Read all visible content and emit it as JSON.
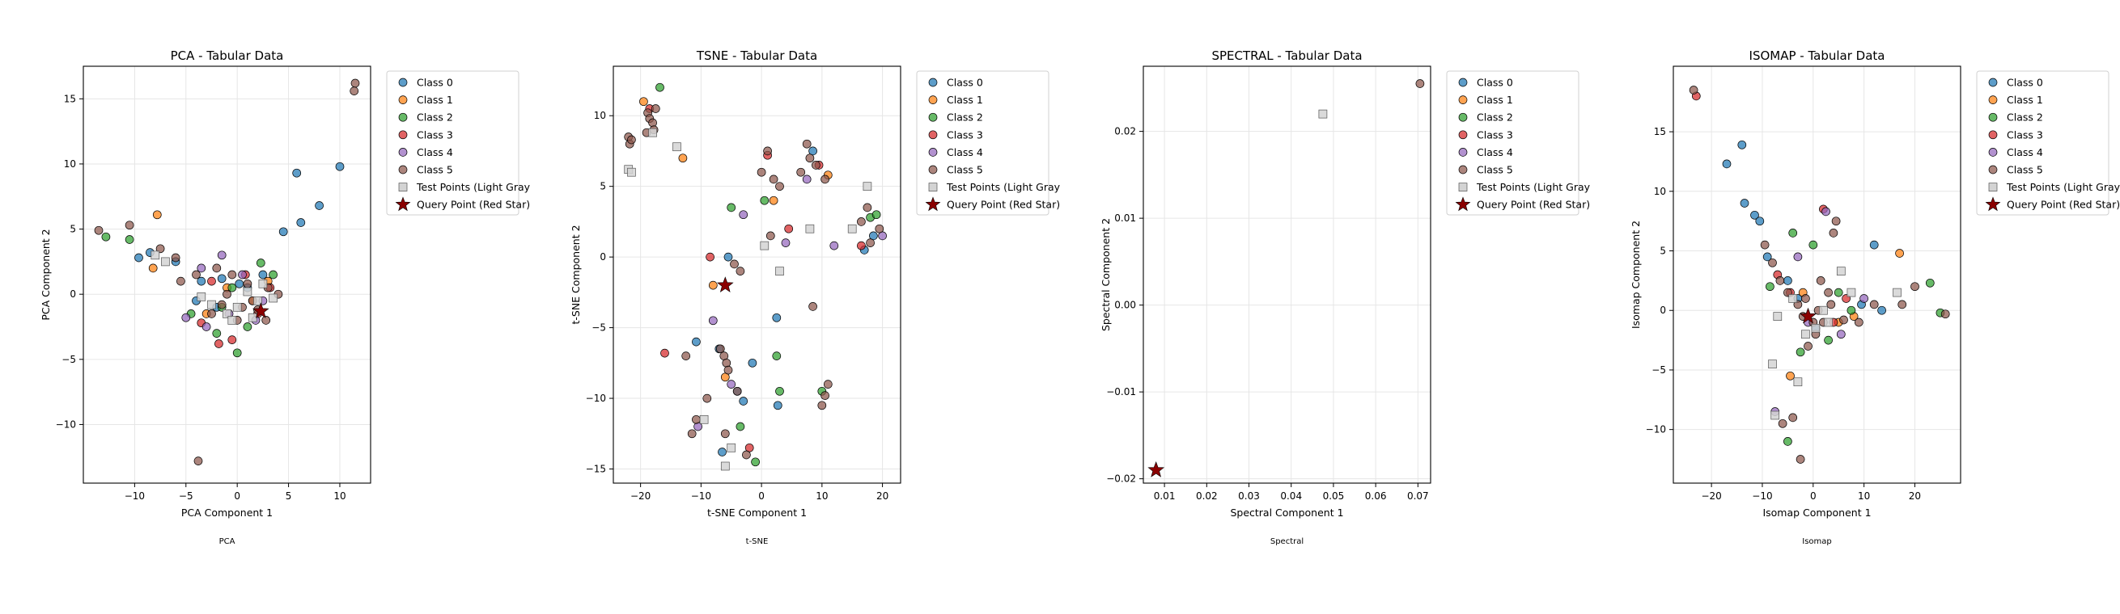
{
  "legend_labels": [
    "Class 0",
    "Class 1",
    "Class 2",
    "Class 3",
    "Class 4",
    "Class 5",
    "Test Points (Light Gray)",
    "Query Point (Red Star)"
  ],
  "class_colors": [
    "#1f77b4",
    "#ff7f0e",
    "#2ca02c",
    "#d62728",
    "#9467bd",
    "#8c564b"
  ],
  "test_color": "#d3d3d3",
  "query_color": "#8b0000",
  "chart_data": [
    {
      "type": "scatter",
      "title": "PCA - Tabular Data",
      "xlabel": "PCA Component 1",
      "ylabel": "PCA Component 2",
      "caption": "PCA",
      "xlim": [
        -15,
        13
      ],
      "ylim": [
        -14.5,
        17.5
      ],
      "xticks": [
        -10,
        -5,
        0,
        5,
        10
      ],
      "yticks": [
        -10,
        -5,
        0,
        5,
        10,
        15
      ],
      "xtick_labels": [
        "−10",
        "−5",
        "0",
        "5",
        "10"
      ],
      "ytick_labels": [
        "−10",
        "−5",
        "0",
        "5",
        "10",
        "15"
      ],
      "grid": true,
      "legend": "outside-upper-right",
      "series": [
        {
          "class": 0,
          "x": [
            -9.6,
            -8.5,
            -6.0,
            -3.5,
            -1.5,
            0.2,
            1.0,
            2.5,
            4.5,
            5.8,
            6.2,
            8.0,
            10.0,
            -4.0,
            -2.0
          ],
          "y": [
            2.8,
            3.2,
            2.5,
            1.0,
            1.2,
            0.8,
            0.5,
            1.5,
            4.8,
            9.3,
            5.5,
            6.8,
            9.8,
            -0.5,
            -1.0
          ]
        },
        {
          "class": 1,
          "x": [
            -7.8,
            -8.2,
            -3.0,
            -1.0,
            1.5,
            3.0
          ],
          "y": [
            6.1,
            2.0,
            -1.5,
            0.5,
            -0.5,
            1.0
          ]
        },
        {
          "class": 2,
          "x": [
            -12.8,
            -10.5,
            -4.5,
            -2.0,
            0.0,
            2.3,
            3.5,
            -0.5,
            1.0,
            -1.5
          ],
          "y": [
            4.4,
            4.2,
            -1.5,
            -3.0,
            -4.5,
            2.4,
            1.5,
            0.5,
            -2.5,
            -1.0
          ]
        },
        {
          "class": 3,
          "x": [
            -1.8,
            -3.5,
            -0.5,
            2.0,
            3.2,
            0.8,
            -2.5
          ],
          "y": [
            -3.8,
            -2.2,
            -3.5,
            -1.5,
            0.5,
            1.5,
            1.0
          ]
        },
        {
          "class": 4,
          "x": [
            -5.0,
            -3.0,
            -1.5,
            0.5,
            2.5,
            1.8,
            -0.8,
            -3.5
          ],
          "y": [
            -1.8,
            -2.5,
            3.0,
            1.5,
            -0.5,
            -2.0,
            -1.5,
            2.0
          ]
        },
        {
          "class": 5,
          "x": [
            -13.5,
            -10.5,
            -7.5,
            -6.0,
            -4.0,
            -2.0,
            -1.0,
            0.5,
            1.5,
            3.0,
            4.0,
            11.5,
            11.4,
            -3.8,
            -2.5,
            -1.5,
            0.0,
            1.0,
            2.0,
            2.8,
            -0.5,
            -5.5
          ],
          "y": [
            4.9,
            5.3,
            3.5,
            2.8,
            1.5,
            2.0,
            0.0,
            -1.0,
            -0.5,
            0.5,
            0.0,
            16.2,
            15.6,
            -12.8,
            -1.5,
            -0.8,
            -2.0,
            0.8,
            -1.2,
            -2.0,
            1.5,
            1.0
          ]
        }
      ],
      "test_points": {
        "x": [
          -8.0,
          -7.0,
          -3.5,
          -2.5,
          -1.0,
          0.0,
          1.0,
          2.0,
          2.5,
          3.5,
          -0.5,
          1.5
        ],
        "y": [
          3.0,
          2.5,
          -0.2,
          -0.8,
          -1.5,
          -1.0,
          0.2,
          -0.5,
          0.8,
          -0.3,
          -2.0,
          -1.8
        ]
      },
      "query_point": {
        "x": 2.3,
        "y": -1.3
      }
    },
    {
      "type": "scatter",
      "title": "TSNE - Tabular Data",
      "xlabel": "t-SNE Component 1",
      "ylabel": "t-SNE Component 2",
      "caption": "t-SNE",
      "xlim": [
        -24.5,
        23
      ],
      "ylim": [
        -16,
        13.5
      ],
      "xticks": [
        -20,
        -10,
        0,
        10,
        20
      ],
      "yticks": [
        -15,
        -10,
        -5,
        0,
        5,
        10
      ],
      "xtick_labels": [
        "−20",
        "−10",
        "0",
        "10",
        "20"
      ],
      "ytick_labels": [
        "−15",
        "−10",
        "−5",
        "0",
        "5",
        "10"
      ],
      "grid": true,
      "legend": "outside-upper-right",
      "series": [
        {
          "class": 0,
          "x": [
            -10.8,
            -7.0,
            -6.5,
            2.5,
            2.7,
            -4.0,
            18.5,
            17.0,
            -1.5,
            8.5,
            -5.5,
            -3.0
          ],
          "y": [
            -6.0,
            -6.5,
            -13.8,
            -4.3,
            -10.5,
            -9.5,
            1.5,
            0.5,
            -7.5,
            7.5,
            0.0,
            -10.2
          ]
        },
        {
          "class": 1,
          "x": [
            -19.5,
            -8.0,
            -6.0,
            11.0,
            2.0,
            -13.0
          ],
          "y": [
            11.0,
            -2.0,
            -8.5,
            5.8,
            4.0,
            7.0
          ]
        },
        {
          "class": 2,
          "x": [
            -16.8,
            3.0,
            -1.0,
            18.0,
            -5.0,
            19.0,
            0.5,
            2.5,
            -3.5,
            10.0
          ],
          "y": [
            12.0,
            -9.5,
            -14.5,
            2.8,
            3.5,
            3.0,
            4.0,
            -7.0,
            -12.0,
            -9.5
          ]
        },
        {
          "class": 3,
          "x": [
            -2.0,
            -16.0,
            -8.5,
            1.0,
            9.5,
            -18.5,
            4.5,
            16.5
          ],
          "y": [
            -13.5,
            -6.8,
            0.0,
            7.2,
            6.5,
            10.5,
            2.0,
            0.8
          ]
        },
        {
          "class": 4,
          "x": [
            -10.5,
            -5.0,
            7.5,
            20.0,
            -8.0,
            4.0,
            -3.0,
            12.0
          ],
          "y": [
            -12.0,
            -9.0,
            5.5,
            1.5,
            -4.5,
            1.0,
            3.0,
            0.8
          ]
        },
        {
          "class": 5,
          "x": [
            -22.0,
            -21.8,
            -21.5,
            -18.8,
            -18.5,
            -18.0,
            -17.5,
            -17.8,
            -19.0,
            -6.8,
            -6.2,
            -5.8,
            -4.5,
            -3.5,
            0.0,
            1.0,
            2.0,
            6.5,
            7.5,
            8.0,
            9.0,
            10.5,
            11.0,
            10.5,
            -10.8,
            -11.5,
            -9.0,
            -5.5,
            -4.0,
            -2.5,
            8.5,
            16.5,
            17.5,
            18.0,
            19.5,
            -12.5,
            1.5,
            -6.0,
            3.0,
            10.0
          ],
          "y": [
            8.5,
            8.0,
            8.3,
            10.2,
            9.8,
            9.5,
            10.5,
            9.0,
            8.8,
            -6.5,
            -7.0,
            -7.5,
            -0.5,
            -1.0,
            6.0,
            7.5,
            5.5,
            6.0,
            8.0,
            7.0,
            6.5,
            5.5,
            -9.0,
            -9.8,
            -11.5,
            -12.5,
            -10.0,
            -8.0,
            -9.5,
            -14.0,
            -3.5,
            2.5,
            3.5,
            1.0,
            2.0,
            -7.0,
            1.5,
            -12.5,
            5.0,
            -10.5
          ]
        }
      ],
      "test_points": {
        "x": [
          -22.0,
          -18.0,
          -14.0,
          -9.5,
          -6.0,
          0.5,
          3.0,
          8.0,
          15.0,
          17.5,
          -5.0,
          -21.5
        ],
        "y": [
          6.2,
          8.8,
          7.8,
          -11.5,
          -14.8,
          0.8,
          -1.0,
          2.0,
          2.0,
          5.0,
          -13.5,
          6.0
        ]
      },
      "query_point": {
        "x": -6.0,
        "y": -2.0
      }
    },
    {
      "type": "scatter",
      "title": "SPECTRAL - Tabular Data",
      "xlabel": "Spectral Component 1",
      "ylabel": "Spectral Component 2",
      "caption": "Spectral",
      "xlim": [
        0.005,
        0.073
      ],
      "ylim": [
        -0.0205,
        0.0275
      ],
      "xticks": [
        0.01,
        0.02,
        0.03,
        0.04,
        0.05,
        0.06,
        0.07
      ],
      "yticks": [
        -0.02,
        -0.01,
        0.0,
        0.01,
        0.02
      ],
      "xtick_labels": [
        "0.01",
        "0.02",
        "0.03",
        "0.04",
        "0.05",
        "0.06",
        "0.07"
      ],
      "ytick_labels": [
        "−0.02",
        "−0.01",
        "0.00",
        "0.01",
        "0.02"
      ],
      "grid": true,
      "legend": "outside-upper-right",
      "series": [
        {
          "class": 5,
          "x": [
            0.0705
          ],
          "y": [
            0.0255
          ]
        }
      ],
      "test_points": {
        "x": [
          0.0475
        ],
        "y": [
          0.022
        ]
      },
      "query_point": {
        "x": 0.008,
        "y": -0.019
      }
    },
    {
      "type": "scatter",
      "title": "ISOMAP - Tabular Data",
      "xlabel": "Isomap Component 1",
      "ylabel": "Isomap Component 2",
      "caption": "Isomap",
      "xlim": [
        -27.5,
        29
      ],
      "ylim": [
        -14.5,
        20.5
      ],
      "xticks": [
        -20,
        -10,
        0,
        10,
        20
      ],
      "yticks": [
        -10,
        -5,
        0,
        5,
        10,
        15
      ],
      "xtick_labels": [
        "−20",
        "−10",
        "0",
        "10",
        "20"
      ],
      "ytick_labels": [
        "−10",
        "−5",
        "0",
        "5",
        "10",
        "15"
      ],
      "grid": true,
      "legend": "outside-upper-right",
      "series": [
        {
          "class": 0,
          "x": [
            -17.0,
            -14.0,
            -13.5,
            -11.5,
            -10.5,
            12.0,
            13.5,
            -9.0,
            -3.0,
            -5.0,
            9.5,
            0.5
          ],
          "y": [
            12.3,
            13.9,
            9.0,
            8.0,
            7.5,
            5.5,
            0.0,
            4.5,
            1.0,
            2.5,
            0.5,
            -1.5
          ]
        },
        {
          "class": 1,
          "x": [
            17.0,
            -4.5,
            8.0,
            -2.0,
            5.0
          ],
          "y": [
            4.8,
            -5.5,
            -0.5,
            1.5,
            -1.0
          ]
        },
        {
          "class": 2,
          "x": [
            23.0,
            -5.0,
            -2.5,
            -4.0,
            5.0,
            7.5,
            3.0,
            25.0,
            -8.5,
            0.0
          ],
          "y": [
            2.3,
            -11.0,
            -3.5,
            6.5,
            1.5,
            0.0,
            -2.5,
            -0.2,
            2.0,
            5.5
          ]
        },
        {
          "class": 3,
          "x": [
            -23.0,
            2.0,
            -4.5,
            4.0,
            6.5,
            -7.0
          ],
          "y": [
            18.0,
            8.5,
            1.5,
            -1.0,
            1.0,
            3.0
          ]
        },
        {
          "class": 4,
          "x": [
            2.5,
            -3.0,
            -7.5,
            10.0,
            5.5,
            -1.0
          ],
          "y": [
            8.3,
            4.5,
            -8.5,
            1.0,
            -2.0,
            -1.0
          ]
        },
        {
          "class": 5,
          "x": [
            -23.5,
            -6.5,
            -5.0,
            -3.0,
            -2.0,
            0.0,
            1.0,
            3.0,
            4.0,
            4.5,
            9.0,
            12.0,
            17.5,
            20.0,
            26.0,
            -9.5,
            -8.0,
            -4.0,
            -2.5,
            -1.0,
            2.0,
            3.5,
            6.0,
            -6.0,
            -1.5,
            1.5,
            0.5
          ],
          "y": [
            18.5,
            2.5,
            1.5,
            0.5,
            -0.5,
            -1.0,
            0.0,
            1.5,
            6.5,
            7.5,
            -1.0,
            0.5,
            0.5,
            2.0,
            -0.3,
            5.5,
            4.0,
            -9.0,
            -12.5,
            -3.0,
            -1.0,
            0.5,
            -0.8,
            -9.5,
            1.0,
            2.5,
            -2.0
          ]
        }
      ],
      "test_points": {
        "x": [
          -8.0,
          -7.5,
          -3.0,
          -1.5,
          0.5,
          2.0,
          5.5,
          7.5,
          -7.0,
          -4.0,
          16.5,
          3.0
        ],
        "y": [
          -4.5,
          -8.8,
          -6.0,
          -2.0,
          -1.5,
          0.0,
          3.3,
          1.5,
          -0.5,
          1.0,
          1.5,
          -1.0
        ]
      },
      "query_point": {
        "x": -1.0,
        "y": -0.5
      }
    }
  ]
}
